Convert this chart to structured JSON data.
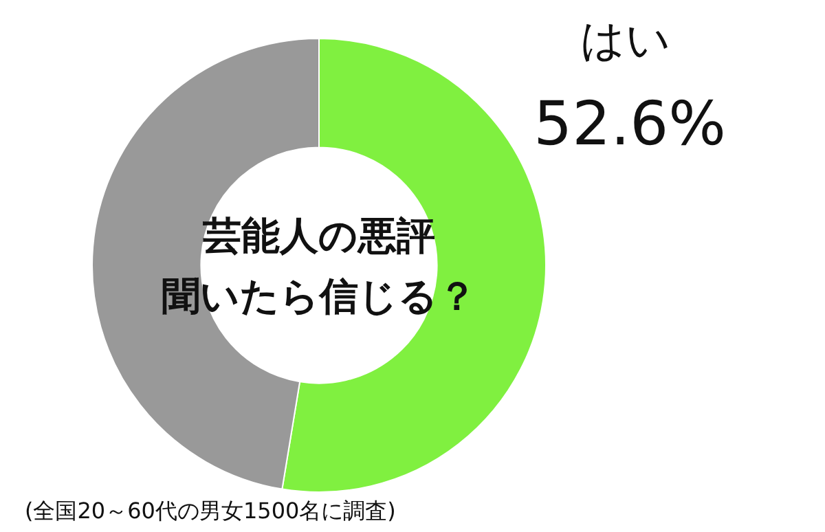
{
  "chart_data": {
    "type": "donut",
    "title": "芸能人の悪評聞いたら信じる？",
    "categories": [
      "はい",
      null
    ],
    "values": [
      52.6,
      47.4
    ],
    "colors": [
      "#80f040",
      "#999999"
    ],
    "value_labels": [
      "52.6%",
      null
    ],
    "annotations": [
      "(全国20～60代の男女1500名に調査)"
    ]
  }
}
